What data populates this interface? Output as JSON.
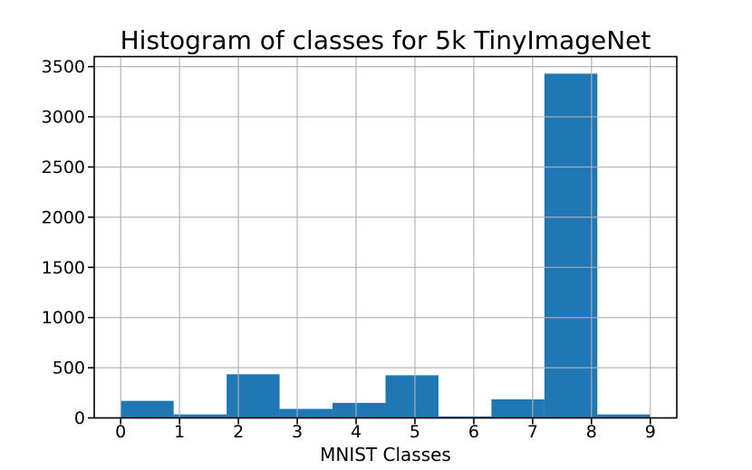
{
  "chart_data": {
    "type": "bar",
    "subtype": "histogram",
    "title": "Histogram of classes for 5k TinyImageNet",
    "xlabel": "MNIST Classes",
    "ylabel": "",
    "bin_edges": [
      0,
      0.9,
      1.8,
      2.7,
      3.6,
      4.5,
      5.4,
      6.3,
      7.2,
      8.1,
      9.0
    ],
    "counts": [
      170,
      35,
      435,
      90,
      150,
      425,
      15,
      185,
      3430,
      35
    ],
    "xticks": [
      0,
      1,
      2,
      3,
      4,
      5,
      6,
      7,
      8,
      9
    ],
    "yticks": [
      0,
      500,
      1000,
      1500,
      2000,
      2500,
      3000,
      3500
    ],
    "xlim": [
      -0.45,
      9.45
    ],
    "ylim": [
      0,
      3600
    ],
    "grid": true,
    "grid_over_bars": true,
    "legend": "none",
    "bar_color": "#1f77b4",
    "grid_color": "#b0b0b0",
    "spine_color": "#000000",
    "text_color": "#000000",
    "background_color": "#ffffff"
  }
}
